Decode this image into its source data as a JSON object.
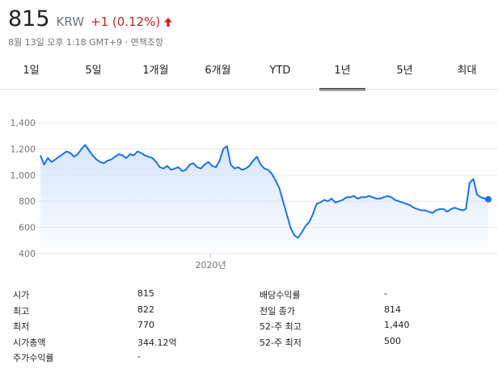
{
  "header": {
    "price": "815",
    "currency": "KRW",
    "change": "+1 (0.12%)",
    "timestamp": "8월 13일 오후 1:18 GMT+9",
    "disclaimer": "면책조항"
  },
  "tabs": [
    {
      "label": "1일"
    },
    {
      "label": "5일"
    },
    {
      "label": "1개월"
    },
    {
      "label": "6개월"
    },
    {
      "label": "YTD"
    },
    {
      "label": "1년",
      "active": true
    },
    {
      "label": "5년"
    },
    {
      "label": "최대"
    }
  ],
  "colors": {
    "line": "#1a73e8",
    "up": "#c5221f",
    "fill_top": "#d2e3fc"
  },
  "chart_data": {
    "type": "area",
    "ylim": [
      400,
      1400
    ],
    "y_ticks": [
      "1,400",
      "1,200",
      "1,000",
      "800",
      "600",
      "400"
    ],
    "x_tick_labels": [
      "2020년"
    ],
    "x_tick_positions": [
      0.38
    ],
    "grid": true,
    "values": [
      1150,
      1080,
      1130,
      1100,
      1120,
      1140,
      1160,
      1180,
      1170,
      1140,
      1160,
      1200,
      1230,
      1190,
      1150,
      1120,
      1100,
      1090,
      1110,
      1120,
      1140,
      1160,
      1150,
      1130,
      1160,
      1150,
      1180,
      1170,
      1150,
      1140,
      1130,
      1100,
      1060,
      1050,
      1070,
      1040,
      1050,
      1060,
      1030,
      1040,
      1080,
      1090,
      1060,
      1050,
      1080,
      1100,
      1070,
      1060,
      1110,
      1200,
      1220,
      1080,
      1050,
      1060,
      1040,
      1050,
      1070,
      1110,
      1140,
      1080,
      1050,
      1040,
      1010,
      960,
      900,
      800,
      700,
      600,
      540,
      520,
      560,
      610,
      640,
      700,
      780,
      790,
      810,
      800,
      820,
      790,
      800,
      810,
      830,
      830,
      840,
      820,
      830,
      830,
      840,
      830,
      820,
      820,
      830,
      840,
      830,
      810,
      800,
      790,
      780,
      770,
      750,
      740,
      730,
      730,
      720,
      710,
      730,
      740,
      740,
      720,
      740,
      750,
      740,
      730,
      740,
      940,
      970,
      850,
      830,
      820,
      815
    ],
    "last_value": 815
  },
  "stats": {
    "rows": [
      {
        "label1": "시가",
        "value1": "815",
        "label2": "배당수익률",
        "value2": "-"
      },
      {
        "label1": "최고",
        "value1": "822",
        "label2": "전일 종가",
        "value2": "814"
      },
      {
        "label1": "최저",
        "value1": "770",
        "label2": "52-주 최고",
        "value2": "1,440"
      },
      {
        "label1": "시가총액",
        "value1": "344.12억",
        "label2": "52-주 최저",
        "value2": "500"
      },
      {
        "label1": "주가수익률",
        "value1": "-",
        "label2": "",
        "value2": ""
      }
    ]
  }
}
